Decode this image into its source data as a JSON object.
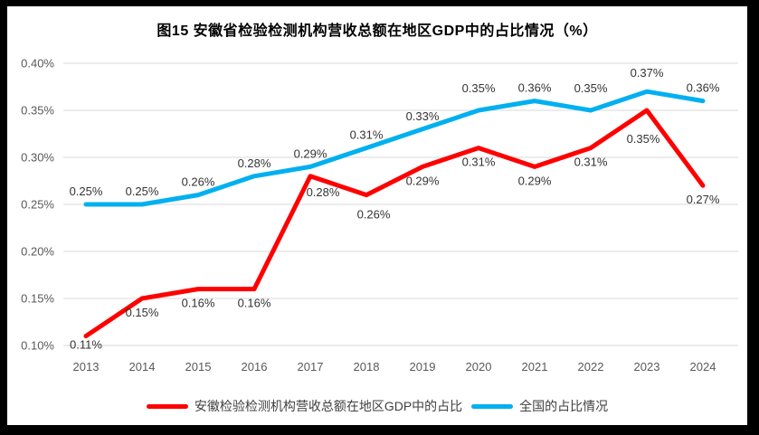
{
  "frame": {
    "border_color": "#000000",
    "background": "#ffffff"
  },
  "colors": {
    "anhui_line": "#FF0000",
    "national_line": "#00B0F0",
    "gridline": "#D9D9D9",
    "axis_text": "#595959",
    "data_label_text": "#333333"
  },
  "chart_data": {
    "type": "line",
    "title": "图15  安徽省检验检测机构营收总额在地区GDP中的占比情况（%）",
    "xlabel": "",
    "ylabel": "",
    "grid": true,
    "legend_position": "bottom",
    "ylim": [
      0.1,
      0.4
    ],
    "ytick_step": 0.05,
    "ytick_labels": [
      "0.10%",
      "0.15%",
      "0.20%",
      "0.25%",
      "0.30%",
      "0.35%",
      "0.40%"
    ],
    "categories": [
      "2013",
      "2014",
      "2015",
      "2016",
      "2017",
      "2018",
      "2019",
      "2020",
      "2021",
      "2022",
      "2023",
      "2024"
    ],
    "series": [
      {
        "id": "anhui",
        "name": "安徽检验检测机构营收总额在地区GDP中的占比",
        "color": "#FF0000",
        "label_position": "below",
        "values": [
          0.11,
          0.15,
          0.16,
          0.16,
          0.28,
          0.26,
          0.29,
          0.31,
          0.29,
          0.31,
          0.35,
          0.27
        ],
        "labels": [
          "0.11%",
          "0.15%",
          "0.16%",
          "0.16%",
          "0.28%",
          "0.26%",
          "0.29%",
          "0.31%",
          "0.29%",
          "0.31%",
          "0.35%",
          "0.27%"
        ],
        "label_offsets": {
          "0": [
            0,
            -6
          ],
          "4": [
            14,
            2
          ],
          "5": [
            8,
            6
          ],
          "10": [
            -4,
            16
          ]
        }
      },
      {
        "id": "national",
        "name": "全国的占比情况",
        "color": "#00B0F0",
        "label_position": "above",
        "values": [
          0.25,
          0.25,
          0.26,
          0.28,
          0.29,
          0.31,
          0.33,
          0.35,
          0.36,
          0.35,
          0.37,
          0.36
        ],
        "labels": [
          "0.25%",
          "0.25%",
          "0.26%",
          "0.28%",
          "0.29%",
          "0.31%",
          "0.33%",
          "0.35%",
          "0.36%",
          "0.35%",
          "0.37%",
          "0.36%"
        ],
        "label_offsets": {
          "7": [
            0,
            -10
          ],
          "9": [
            0,
            -10
          ],
          "10": [
            0,
            -6
          ]
        }
      }
    ]
  }
}
